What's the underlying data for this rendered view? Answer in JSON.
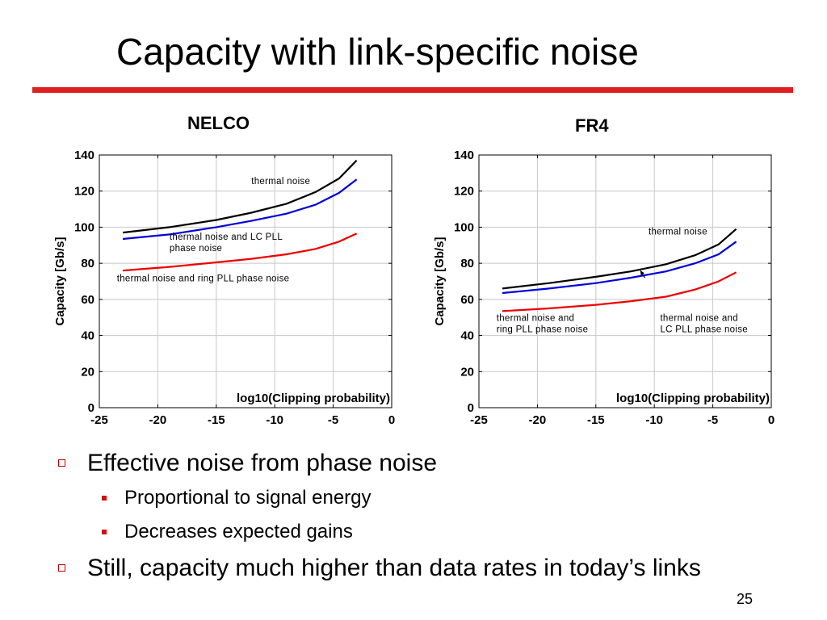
{
  "slide": {
    "title": "Capacity with link-specific noise",
    "page_number": "25",
    "accent_color": "#e02020"
  },
  "bullets": [
    {
      "level": 1,
      "text": "Effective noise from phase noise"
    },
    {
      "level": 2,
      "text": "Proportional to signal energy"
    },
    {
      "level": 2,
      "text": "Decreases expected gains"
    },
    {
      "level": 1,
      "text": "Still, capacity much higher than data rates in today’s links"
    }
  ],
  "chart_data": [
    {
      "type": "line",
      "title": "NELCO",
      "xlabel": "log10(Clipping probability)",
      "ylabel": "Capacity [Gb/s]",
      "xlim": [
        -25,
        0
      ],
      "ylim": [
        0,
        140
      ],
      "x_ticks": [
        "-25",
        "-20",
        "-15",
        "-10",
        "-5",
        "0"
      ],
      "y_ticks": [
        "0",
        "20",
        "40",
        "60",
        "80",
        "100",
        "120",
        "140"
      ],
      "grid": true,
      "series": [
        {
          "name": "thermal noise",
          "color": "#000000",
          "x": [
            -23,
            -19,
            -15,
            -12,
            -9,
            -6.5,
            -4.5,
            -3
          ],
          "values": [
            97,
            100,
            104,
            108,
            113,
            119.5,
            127,
            137
          ]
        },
        {
          "name": "thermal noise and LC PLL phase noise",
          "color": "#0000dd",
          "x": [
            -23,
            -19,
            -15,
            -12,
            -9,
            -6.5,
            -4.5,
            -3
          ],
          "values": [
            93.5,
            96,
            100,
            103.5,
            107.5,
            112.5,
            119,
            126.5
          ]
        },
        {
          "name": "thermal noise and ring PLL phase noise",
          "color": "#ee0000",
          "x": [
            -23,
            -19,
            -15,
            -12,
            -9,
            -6.5,
            -4.5,
            -3
          ],
          "values": [
            76,
            78,
            80.5,
            82.5,
            85,
            88,
            92,
            96.5
          ]
        }
      ],
      "annotations": [
        {
          "lines": [
            "thermal noise"
          ],
          "at": [
            -12,
            124
          ]
        },
        {
          "lines": [
            "thermal noise and LC PLL",
            "phase noise"
          ],
          "at": [
            -19,
            93
          ]
        },
        {
          "lines": [
            "thermal noise and ring PLL phase noise"
          ],
          "at": [
            -23.5,
            70
          ]
        }
      ]
    },
    {
      "type": "line",
      "title": "FR4",
      "xlabel": "log10(Clipping probability)",
      "ylabel": "Capacity [Gb/s]",
      "xlim": [
        -25,
        0
      ],
      "ylim": [
        0,
        140
      ],
      "x_ticks": [
        "-25",
        "-20",
        "-15",
        "-10",
        "-5",
        "0"
      ],
      "y_ticks": [
        "0",
        "20",
        "40",
        "60",
        "80",
        "100",
        "120",
        "140"
      ],
      "grid": true,
      "series": [
        {
          "name": "thermal noise",
          "color": "#000000",
          "x": [
            -23,
            -19,
            -15,
            -12,
            -9,
            -6.5,
            -4.5,
            -3
          ],
          "values": [
            66,
            69,
            72.5,
            75.5,
            79.5,
            84.5,
            90.5,
            99
          ]
        },
        {
          "name": "thermal noise and LC PLL phase noise",
          "color": "#0000dd",
          "x": [
            -23,
            -19,
            -15,
            -12,
            -9,
            -6.5,
            -4.5,
            -3
          ],
          "values": [
            63.5,
            66,
            69,
            72,
            75.5,
            80,
            85,
            92
          ]
        },
        {
          "name": "thermal noise and ring PLL phase noise",
          "color": "#ee0000",
          "x": [
            -23,
            -19,
            -15,
            -12,
            -9,
            -6.5,
            -4.5,
            -3
          ],
          "values": [
            53.5,
            55,
            57,
            59,
            61.5,
            65.5,
            70,
            75
          ]
        }
      ],
      "annotations": [
        {
          "lines": [
            "thermal noise"
          ],
          "at": [
            -10.5,
            96
          ]
        },
        {
          "lines": [
            "thermal noise and",
            "ring PLL phase noise"
          ],
          "at": [
            -23.5,
            48
          ]
        },
        {
          "lines": [
            "thermal noise and",
            "LC PLL phase noise"
          ],
          "at": [
            -9.5,
            48
          ]
        }
      ],
      "arrow": {
        "from": [
          -10.8,
          72
        ],
        "to": [
          -11.2,
          76
        ]
      }
    }
  ]
}
